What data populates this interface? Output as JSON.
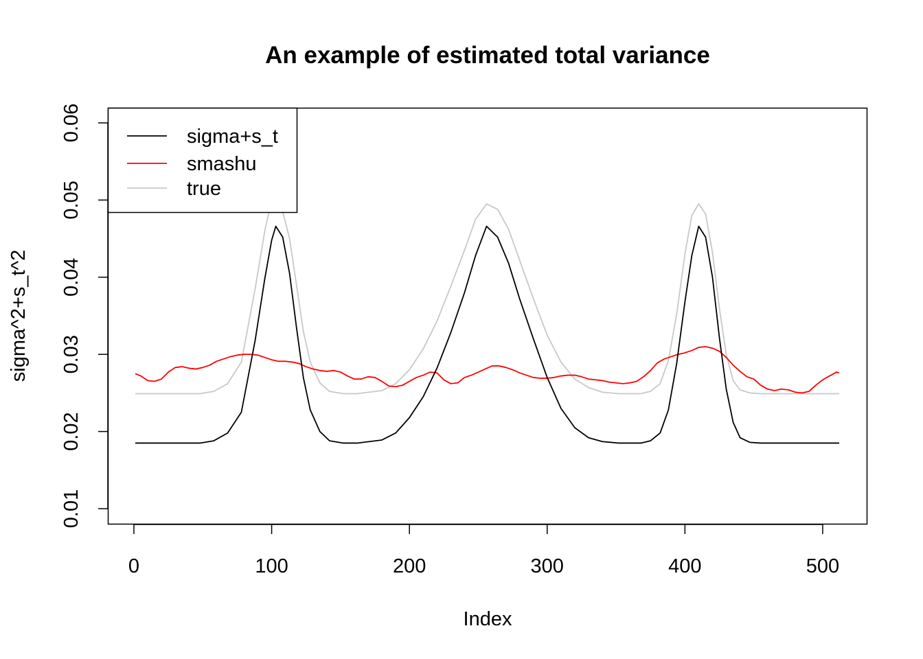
{
  "chart_data": {
    "type": "line",
    "title": "An example of estimated total variance",
    "xlabel": "Index",
    "ylabel": "sigma^2+s_t^2",
    "xlim": [
      1,
      512
    ],
    "ylim": [
      0.01,
      0.06
    ],
    "x_ticks": [
      "0",
      "100",
      "200",
      "300",
      "400",
      "500"
    ],
    "y_ticks": [
      "0.01",
      "0.02",
      "0.03",
      "0.04",
      "0.05",
      "0.06"
    ],
    "grid": false,
    "legend_position": "top-left",
    "series": [
      {
        "name": "sigma+s_t",
        "color": "#000000",
        "x": [
          1,
          48,
          58,
          68,
          78,
          88,
          95,
          100,
          103,
          108,
          113,
          118,
          123,
          128,
          135,
          142,
          152,
          162,
          180,
          190,
          200,
          210,
          220,
          230,
          240,
          248,
          256,
          264,
          272,
          280,
          290,
          300,
          310,
          320,
          330,
          340,
          352,
          368,
          375,
          382,
          388,
          394,
          400,
          405,
          410,
          415,
          420,
          425,
          430,
          435,
          440,
          447,
          455,
          512
        ],
        "values": [
          0.0185,
          0.0185,
          0.0188,
          0.0198,
          0.0225,
          0.0318,
          0.0398,
          0.0448,
          0.0466,
          0.0452,
          0.0405,
          0.0335,
          0.027,
          0.0228,
          0.02,
          0.0188,
          0.0185,
          0.0185,
          0.0189,
          0.0198,
          0.0218,
          0.0245,
          0.0282,
          0.0328,
          0.038,
          0.0428,
          0.0466,
          0.0452,
          0.0418,
          0.0372,
          0.032,
          0.027,
          0.023,
          0.0205,
          0.0192,
          0.0187,
          0.0185,
          0.0185,
          0.0188,
          0.0198,
          0.0228,
          0.0288,
          0.0368,
          0.0428,
          0.0466,
          0.0452,
          0.04,
          0.0322,
          0.0255,
          0.0212,
          0.0192,
          0.0186,
          0.0185,
          0.0185
        ]
      },
      {
        "name": "smashu",
        "color": "#ff0000",
        "x": [
          1,
          5,
          10,
          15,
          20,
          25,
          30,
          35,
          40,
          45,
          50,
          55,
          60,
          65,
          70,
          75,
          80,
          85,
          90,
          95,
          100,
          105,
          110,
          115,
          120,
          125,
          130,
          135,
          140,
          145,
          150,
          155,
          160,
          165,
          170,
          175,
          180,
          185,
          190,
          195,
          200,
          205,
          210,
          215,
          220,
          225,
          230,
          235,
          240,
          245,
          250,
          255,
          260,
          265,
          270,
          275,
          280,
          285,
          290,
          295,
          300,
          305,
          310,
          315,
          320,
          325,
          330,
          335,
          340,
          345,
          350,
          355,
          360,
          365,
          370,
          375,
          380,
          385,
          390,
          395,
          400,
          405,
          410,
          415,
          420,
          425,
          430,
          435,
          440,
          445,
          450,
          455,
          460,
          465,
          470,
          475,
          480,
          485,
          490,
          495,
          500,
          505,
          510,
          512
        ],
        "values": [
          0.0275,
          0.0272,
          0.0266,
          0.0265,
          0.0268,
          0.0277,
          0.0283,
          0.0284,
          0.0282,
          0.0281,
          0.0283,
          0.0286,
          0.0291,
          0.0294,
          0.0297,
          0.0299,
          0.03,
          0.03,
          0.0299,
          0.0296,
          0.0293,
          0.0291,
          0.0291,
          0.029,
          0.0288,
          0.0284,
          0.0281,
          0.0279,
          0.0278,
          0.0279,
          0.0277,
          0.0272,
          0.0268,
          0.0268,
          0.0271,
          0.027,
          0.0265,
          0.0259,
          0.0258,
          0.026,
          0.0265,
          0.027,
          0.0273,
          0.0277,
          0.0276,
          0.0267,
          0.0262,
          0.0263,
          0.027,
          0.0273,
          0.0277,
          0.0281,
          0.0285,
          0.0285,
          0.0283,
          0.028,
          0.0276,
          0.0273,
          0.027,
          0.0269,
          0.0269,
          0.027,
          0.0272,
          0.0273,
          0.0273,
          0.0271,
          0.0268,
          0.0267,
          0.0266,
          0.0264,
          0.0263,
          0.0262,
          0.0263,
          0.0265,
          0.0271,
          0.0279,
          0.0289,
          0.0294,
          0.0297,
          0.03,
          0.0302,
          0.0305,
          0.0309,
          0.031,
          0.0308,
          0.0304,
          0.0296,
          0.0286,
          0.0278,
          0.0271,
          0.0268,
          0.026,
          0.0255,
          0.0253,
          0.0255,
          0.0254,
          0.0251,
          0.025,
          0.0252,
          0.026,
          0.0267,
          0.0272,
          0.0277,
          0.0276
        ]
      },
      {
        "name": "true",
        "color": "#c8c8c8",
        "x": [
          1,
          48,
          58,
          68,
          78,
          88,
          95,
          100,
          104,
          108,
          113,
          118,
          123,
          128,
          135,
          142,
          152,
          162,
          180,
          190,
          200,
          210,
          220,
          230,
          240,
          248,
          256,
          264,
          272,
          280,
          290,
          300,
          310,
          320,
          330,
          340,
          352,
          368,
          375,
          382,
          388,
          394,
          400,
          405,
          410,
          415,
          420,
          425,
          430,
          435,
          440,
          447,
          455,
          512
        ],
        "values": [
          0.0249,
          0.0249,
          0.0252,
          0.0262,
          0.029,
          0.0385,
          0.046,
          0.05,
          0.05,
          0.0485,
          0.045,
          0.039,
          0.033,
          0.029,
          0.0263,
          0.0252,
          0.0249,
          0.0249,
          0.0253,
          0.0262,
          0.028,
          0.0307,
          0.0343,
          0.0388,
          0.0435,
          0.0475,
          0.0495,
          0.0488,
          0.0462,
          0.0422,
          0.0372,
          0.0325,
          0.029,
          0.0268,
          0.0257,
          0.0251,
          0.0249,
          0.0249,
          0.0252,
          0.0262,
          0.0292,
          0.0352,
          0.043,
          0.048,
          0.0495,
          0.0482,
          0.0432,
          0.036,
          0.03,
          0.0266,
          0.0254,
          0.025,
          0.0249,
          0.0249
        ]
      }
    ]
  }
}
